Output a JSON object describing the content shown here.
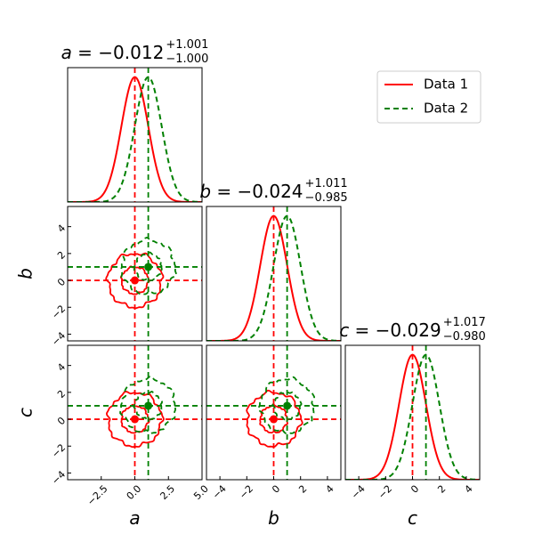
{
  "chart_data": {
    "type": "corner",
    "parameters": [
      "a",
      "b",
      "c"
    ],
    "axis_labels": [
      "a",
      "b",
      "c"
    ],
    "titles": [
      {
        "param": "a",
        "value": "-0.012",
        "upper": "+1.001",
        "lower": "-1.000"
      },
      {
        "param": "b",
        "value": "-0.024",
        "upper": "+1.011",
        "lower": "-0.985"
      },
      {
        "param": "c",
        "value": "-0.029",
        "upper": "+1.017",
        "lower": "-0.980"
      }
    ],
    "series": [
      {
        "name": "Data 1",
        "color": "#ff0000",
        "style": "solid",
        "mean": [
          0.0,
          0.0,
          0.0
        ],
        "sigma": [
          1.0,
          1.0,
          1.0
        ]
      },
      {
        "name": "Data 2",
        "color": "#008000",
        "style": "dashed",
        "mean": [
          1.0,
          1.0,
          1.0
        ],
        "sigma": [
          1.0,
          1.0,
          1.0
        ]
      }
    ],
    "contour_levels": [
      1,
      2
    ],
    "xlim": [
      -5.0,
      5.0
    ],
    "ylim": [
      -4.5,
      5.5
    ],
    "xticks": [
      [
        -2.5,
        0.0,
        2.5,
        5.0
      ],
      [
        -4,
        -2,
        0,
        2,
        4
      ],
      [
        -4,
        -2,
        0,
        2,
        4
      ]
    ],
    "xtick_labels": [
      [
        "−2.5",
        "0.0",
        "2.5",
        "5.0"
      ],
      [
        "−4",
        "−2",
        "0",
        "2",
        "4"
      ],
      [
        "−4",
        "−2",
        "0",
        "2",
        "4"
      ]
    ],
    "yticks": [
      -4,
      -2,
      0,
      2,
      4
    ],
    "ytick_labels": [
      "−4",
      "−2",
      "0",
      "2",
      "4"
    ],
    "legend_position": "top-right"
  }
}
